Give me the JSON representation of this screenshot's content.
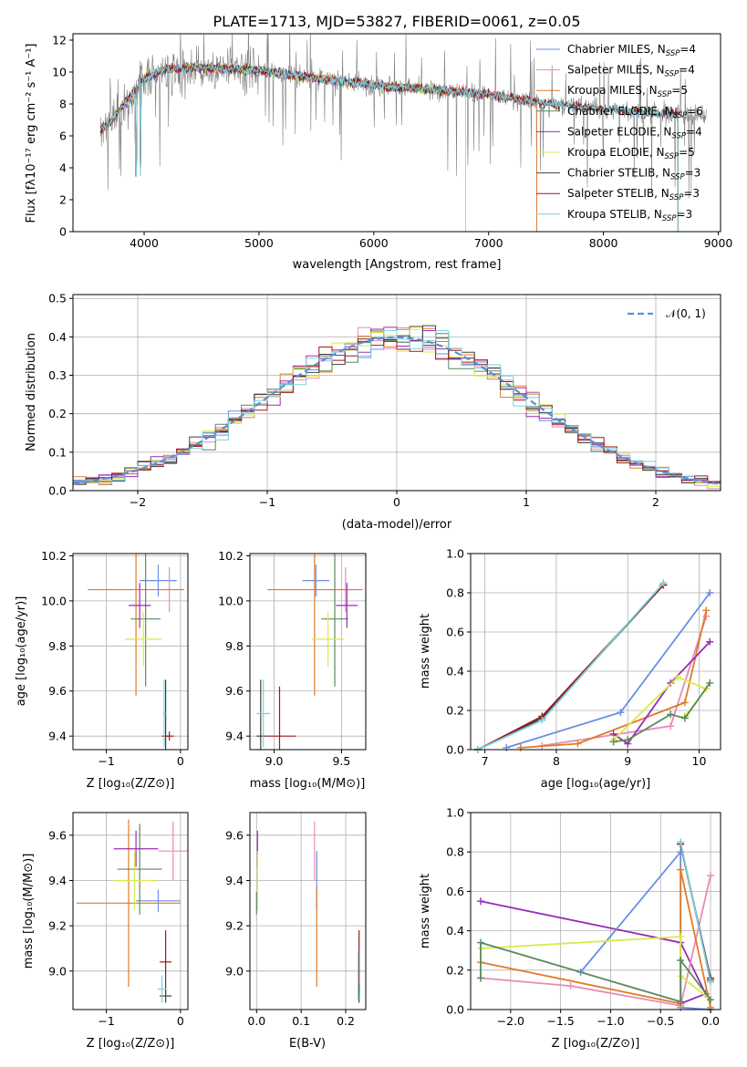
{
  "colors": {
    "chabrier_miles": "#6a8ee0",
    "salpeter_miles": "#e88bb6",
    "kroupa_miles": "#e07b28",
    "chabrier_elodie": "#5a8a5e",
    "salpeter_elodie": "#9b2ab8",
    "kroupa_elodie": "#d8ea48",
    "chabrier_stelib": "#404040",
    "salpeter_stelib": "#a01818",
    "kroupa_stelib": "#7ad0dc",
    "data": "#808080",
    "normal": "#5b8ed6"
  },
  "chart_data": [
    {
      "id": "spectrum",
      "type": "line",
      "title": "PLATE=1713, MJD=53827, FIBERID=0061, z=0.05",
      "xlabel": "wavelength [Angstrom, rest frame]",
      "ylabel": "Flux [fλ10⁻¹⁷ erg cm⁻² s⁻¹ A⁻¹]",
      "xlim": [
        3380,
        9020
      ],
      "ylim": [
        0,
        12.4
      ],
      "xticks": [
        4000,
        5000,
        6000,
        7000,
        8000,
        9000
      ],
      "yticks": [
        0,
        2,
        4,
        6,
        8,
        10,
        12
      ],
      "legend_position": "upper right",
      "continuum": {
        "x": [
          3620,
          3700,
          3800,
          3900,
          4000,
          4200,
          4500,
          5000,
          5500,
          6000,
          6500,
          7000,
          7500,
          8000,
          8500,
          8900
        ],
        "y": [
          6.4,
          6.8,
          7.8,
          8.6,
          9.6,
          10.2,
          10.3,
          10.1,
          9.6,
          9.2,
          8.9,
          8.6,
          8.0,
          7.7,
          7.4,
          7.3
        ]
      },
      "data_end": 8900,
      "series": [
        {
          "name": "Chabrier MILES, N_SSP=4",
          "label_main": "Chabrier MILES, N",
          "label_sub": "SSP",
          "label_tail": "=4",
          "color_key": "chabrier_miles",
          "end": 7420
        },
        {
          "name": "Salpeter MILES, N_SSP=4",
          "label_main": "Salpeter MILES, N",
          "label_sub": "SSP",
          "label_tail": "=4",
          "color_key": "salpeter_miles",
          "end": 7420
        },
        {
          "name": "Kroupa MILES, N_SSP=5",
          "label_main": "Kroupa MILES, N",
          "label_sub": "SSP",
          "label_tail": "=5",
          "color_key": "kroupa_miles",
          "end": 7420
        },
        {
          "name": "Chabrier ELODIE, N_SSP=6",
          "label_main": "Chabrier ELODIE, N",
          "label_sub": "SSP",
          "label_tail": "=6",
          "color_key": "chabrier_elodie",
          "end": 6800
        },
        {
          "name": "Salpeter ELODIE, N_SSP=4",
          "label_main": "Salpeter ELODIE, N",
          "label_sub": "SSP",
          "label_tail": "=4",
          "color_key": "salpeter_elodie",
          "end": 6800
        },
        {
          "name": "Kroupa ELODIE, N_SSP=5",
          "label_main": "Kroupa ELODIE, N",
          "label_sub": "SSP",
          "label_tail": "=5",
          "color_key": "kroupa_elodie",
          "end": 6800
        },
        {
          "name": "Chabrier STELIB, N_SSP=3",
          "label_main": "Chabrier STELIB, N",
          "label_sub": "SSP",
          "label_tail": "=3",
          "color_key": "chabrier_stelib",
          "end": 8650
        },
        {
          "name": "Salpeter STELIB, N_SSP=3",
          "label_main": "Salpeter STELIB, N",
          "label_sub": "SSP",
          "label_tail": "=3",
          "color_key": "salpeter_stelib",
          "end": 8650
        },
        {
          "name": "Kroupa STELIB, N_SSP=3",
          "label_main": "Kroupa STELIB, N",
          "label_sub": "SSP",
          "label_tail": "=3",
          "color_key": "kroupa_stelib",
          "end": 8650
        }
      ]
    },
    {
      "id": "residuals",
      "type": "histogram",
      "xlabel": "(data-model)/error",
      "ylabel": "Normed distribution",
      "xlim": [
        -2.5,
        2.5
      ],
      "ylim": [
        0,
        0.51
      ],
      "xticks": [
        -2,
        -1,
        0,
        1,
        2
      ],
      "yticks": [
        0.0,
        0.1,
        0.2,
        0.3,
        0.4,
        0.5
      ],
      "bin_width": 0.1,
      "reference": {
        "name": "N(0,1)",
        "label": "𝒩(0, 1)",
        "mean": 0,
        "sigma": 1,
        "style": "dashed",
        "color_key": "normal"
      },
      "legend_position": "upper right"
    },
    {
      "id": "z_vs_age",
      "type": "errorbar",
      "xlabel": "Z [log₁₀(Z/Z⊙)]",
      "ylabel": "age  [log₁₀(age/yr)]",
      "xlim": [
        -1.45,
        0.1
      ],
      "ylim": [
        9.34,
        10.21
      ],
      "xticks": [
        -1,
        0
      ],
      "yticks": [
        9.4,
        9.6,
        9.8,
        10.0,
        10.2
      ],
      "points": [
        {
          "color_key": "chabrier_miles",
          "x": -0.3,
          "xerr": 0.25,
          "y": 10.09,
          "yerr": 0.07
        },
        {
          "color_key": "salpeter_miles",
          "x": -0.15,
          "xerr": 0.15,
          "y": 10.05,
          "yerr": 0.1
        },
        {
          "color_key": "kroupa_miles",
          "x": -0.6,
          "xerr": 0.65,
          "y": 10.05,
          "yerr": 0.47
        },
        {
          "color_key": "chabrier_elodie",
          "x": -0.47,
          "xerr": 0.2,
          "y": 9.92,
          "yerr": 0.3
        },
        {
          "color_key": "salpeter_elodie",
          "x": -0.55,
          "xerr": 0.15,
          "y": 9.98,
          "yerr": 0.1
        },
        {
          "color_key": "kroupa_elodie",
          "x": -0.5,
          "xerr": 0.25,
          "y": 9.83,
          "yerr": 0.12
        },
        {
          "color_key": "chabrier_stelib",
          "x": -0.2,
          "xerr": 0.05,
          "y": 9.4,
          "yerr": 0.25
        },
        {
          "color_key": "salpeter_stelib",
          "x": -0.15,
          "xerr": 0.06,
          "y": 9.4,
          "yerr": 0.02
        },
        {
          "color_key": "kroupa_stelib",
          "x": -0.22,
          "xerr": 0.02,
          "y": 9.5,
          "yerr": 0.15
        }
      ]
    },
    {
      "id": "mass_vs_age",
      "type": "errorbar",
      "xlabel": "mass [log₁₀(M/M⊙)]",
      "ylabel": "",
      "xlim": [
        8.82,
        9.68
      ],
      "ylim": [
        9.34,
        10.21
      ],
      "xticks": [
        9.0,
        9.5
      ],
      "yticks": [
        9.4,
        9.6,
        9.8,
        10.0,
        10.2
      ],
      "points": [
        {
          "color_key": "chabrier_miles",
          "x": 9.31,
          "xerr": 0.1,
          "y": 10.09,
          "yerr": 0.07
        },
        {
          "color_key": "salpeter_miles",
          "x": 9.53,
          "xerr": 0.13,
          "y": 10.05,
          "yerr": 0.1
        },
        {
          "color_key": "kroupa_miles",
          "x": 9.3,
          "xerr": 0.35,
          "y": 10.05,
          "yerr": 0.47
        },
        {
          "color_key": "chabrier_elodie",
          "x": 9.45,
          "xerr": 0.1,
          "y": 9.92,
          "yerr": 0.3
        },
        {
          "color_key": "salpeter_elodie",
          "x": 9.54,
          "xerr": 0.08,
          "y": 9.98,
          "yerr": 0.1
        },
        {
          "color_key": "kroupa_elodie",
          "x": 9.4,
          "xerr": 0.12,
          "y": 9.83,
          "yerr": 0.12
        },
        {
          "color_key": "chabrier_stelib",
          "x": 8.9,
          "xerr": 0.03,
          "y": 9.4,
          "yerr": 0.25
        },
        {
          "color_key": "salpeter_stelib",
          "x": 9.04,
          "xerr": 0.12,
          "y": 9.4,
          "yerr": 0.22
        },
        {
          "color_key": "kroupa_stelib",
          "x": 8.92,
          "xerr": 0.05,
          "y": 9.5,
          "yerr": 0.15
        }
      ]
    },
    {
      "id": "age_vs_weight",
      "type": "line",
      "xlabel": "age  [log₁₀(age/yr)]",
      "ylabel": "mass weight",
      "xlim": [
        6.8,
        10.3
      ],
      "ylim": [
        0,
        1.0
      ],
      "xticks": [
        7,
        8,
        9,
        10
      ],
      "yticks": [
        0.0,
        0.2,
        0.4,
        0.6,
        0.8,
        1.0
      ],
      "series": [
        {
          "color_key": "chabrier_stelib",
          "x": [
            6.9,
            7.8,
            9.5
          ],
          "y": [
            0.0,
            0.16,
            0.84
          ]
        },
        {
          "color_key": "salpeter_stelib",
          "x": [
            6.9,
            7.8,
            9.5
          ],
          "y": [
            0.0,
            0.17,
            0.84
          ]
        },
        {
          "color_key": "kroupa_stelib",
          "x": [
            6.9,
            7.8,
            9.5
          ],
          "y": [
            0.0,
            0.15,
            0.85
          ]
        },
        {
          "color_key": "chabrier_miles",
          "x": [
            7.3,
            8.9,
            10.15
          ],
          "y": [
            0.01,
            0.19,
            0.8
          ]
        },
        {
          "color_key": "salpeter_miles",
          "x": [
            7.8,
            9.6,
            10.1
          ],
          "y": [
            0.02,
            0.12,
            0.68
          ]
        },
        {
          "color_key": "kroupa_miles",
          "x": [
            7.5,
            8.3,
            9.8,
            10.1
          ],
          "y": [
            0.01,
            0.03,
            0.24,
            0.71
          ]
        },
        {
          "color_key": "salpeter_elodie",
          "x": [
            8.8,
            9.0,
            9.6,
            10.15
          ],
          "y": [
            0.08,
            0.03,
            0.34,
            0.55
          ]
        },
        {
          "color_key": "kroupa_elodie",
          "x": [
            8.8,
            9.7,
            10.1,
            9.8
          ],
          "y": [
            0.05,
            0.37,
            0.31,
            0.17
          ]
        },
        {
          "color_key": "chabrier_elodie",
          "x": [
            8.8,
            9.0,
            9.6,
            9.8,
            10.15
          ],
          "y": [
            0.04,
            0.05,
            0.18,
            0.16,
            0.34
          ]
        }
      ]
    },
    {
      "id": "z_vs_mass",
      "type": "errorbar",
      "xlabel": "Z [log₁₀(Z/Z⊙)]",
      "ylabel": "mass [log₁₀(M/M⊙)]",
      "xlim": [
        -1.45,
        0.1
      ],
      "ylim": [
        8.83,
        9.7
      ],
      "xticks": [
        -1,
        0
      ],
      "yticks": [
        9.0,
        9.2,
        9.4,
        9.6
      ],
      "points": [
        {
          "color_key": "chabrier_miles",
          "x": -0.3,
          "xerr": 0.3,
          "y": 9.31,
          "yerr": 0.05
        },
        {
          "color_key": "salpeter_miles",
          "x": -0.1,
          "xerr": 0.2,
          "y": 9.53,
          "yerr": 0.13
        },
        {
          "color_key": "kroupa_miles",
          "x": -0.7,
          "xerr": 0.7,
          "y": 9.3,
          "yerr": 0.37
        },
        {
          "color_key": "chabrier_elodie",
          "x": -0.55,
          "xerr": 0.3,
          "y": 9.45,
          "yerr": 0.2
        },
        {
          "color_key": "salpeter_elodie",
          "x": -0.6,
          "xerr": 0.3,
          "y": 9.54,
          "yerr": 0.08
        },
        {
          "color_key": "kroupa_elodie",
          "x": -0.62,
          "xerr": 0.28,
          "y": 9.4,
          "yerr": 0.13
        },
        {
          "color_key": "chabrier_stelib",
          "x": -0.2,
          "xerr": 0.08,
          "y": 8.89,
          "yerr": 0.03
        },
        {
          "color_key": "salpeter_stelib",
          "x": -0.2,
          "xerr": 0.08,
          "y": 9.04,
          "yerr": 0.14
        },
        {
          "color_key": "kroupa_stelib",
          "x": -0.25,
          "xerr": 0.06,
          "y": 8.92,
          "yerr": 0.06
        }
      ]
    },
    {
      "id": "ebv_vs_mass",
      "type": "errorbar",
      "xlabel": "E(B-V)",
      "ylabel": "",
      "xlim": [
        -0.015,
        0.245
      ],
      "ylim": [
        8.83,
        9.7
      ],
      "xticks": [
        0.0,
        0.1,
        0.2
      ],
      "yticks": [
        9.0,
        9.2,
        9.4,
        9.6
      ],
      "points": [
        {
          "color_key": "salpeter_miles",
          "x": 0.13,
          "xerr": 0.0,
          "y": 9.53,
          "yerr": 0.13
        },
        {
          "color_key": "chabrier_miles",
          "x": 0.135,
          "xerr": 0.0,
          "y": 9.4,
          "yerr": 0.13
        },
        {
          "color_key": "kroupa_miles",
          "x": 0.135,
          "xerr": 0.0,
          "y": 9.15,
          "yerr": 0.22
        },
        {
          "color_key": "salpeter_elodie",
          "x": 0.002,
          "xerr": 0.0,
          "y": 9.54,
          "yerr": 0.08
        },
        {
          "color_key": "kroupa_elodie",
          "x": 0.002,
          "xerr": 0.0,
          "y": 9.4,
          "yerr": 0.13
        },
        {
          "color_key": "chabrier_elodie",
          "x": 0.0,
          "xerr": 0.0,
          "y": 9.3,
          "yerr": 0.05
        },
        {
          "color_key": "salpeter_stelib",
          "x": 0.23,
          "xerr": 0.0,
          "y": 9.04,
          "yerr": 0.14
        },
        {
          "color_key": "chabrier_stelib",
          "x": 0.23,
          "xerr": 0.0,
          "y": 8.9,
          "yerr": 0.04
        },
        {
          "color_key": "kroupa_stelib",
          "x": 0.228,
          "xerr": 0.0,
          "y": 8.98,
          "yerr": 0.11
        }
      ]
    },
    {
      "id": "z_vs_weight",
      "type": "line",
      "xlabel": "Z [log₁₀(Z/Z⊙)]",
      "ylabel": "mass weight",
      "xlim": [
        -2.4,
        0.1
      ],
      "ylim": [
        0,
        1.0
      ],
      "xticks": [
        -2.0,
        -1.5,
        -1.0,
        -0.5,
        0.0
      ],
      "yticks": [
        0.0,
        0.2,
        0.4,
        0.6,
        0.8,
        1.0
      ],
      "series": [
        {
          "color_key": "salpeter_elodie",
          "x": [
            -2.3,
            -0.3,
            -0.05,
            -0.3
          ],
          "y": [
            0.55,
            0.34,
            0.08,
            0.03
          ]
        },
        {
          "color_key": "chabrier_miles",
          "x": [
            -1.3,
            -0.3,
            -0.3,
            0.0
          ],
          "y": [
            0.19,
            0.8,
            0.01,
            0.0
          ]
        },
        {
          "color_key": "salpeter_miles",
          "x": [
            -2.3,
            -1.4,
            -0.3,
            0.0,
            -0.3
          ],
          "y": [
            0.16,
            0.12,
            0.02,
            0.68,
            0.02
          ]
        },
        {
          "color_key": "kroupa_miles",
          "x": [
            -2.3,
            -0.3,
            -0.3,
            0.0
          ],
          "y": [
            0.24,
            0.03,
            0.71,
            0.01
          ]
        },
        {
          "color_key": "kroupa_elodie",
          "x": [
            -2.3,
            -0.3,
            -0.3,
            0.0
          ],
          "y": [
            0.31,
            0.37,
            0.17,
            0.05
          ]
        },
        {
          "color_key": "chabrier_elodie",
          "x": [
            -2.3,
            -2.3,
            -0.3,
            -0.3,
            0.0
          ],
          "y": [
            0.16,
            0.34,
            0.04,
            0.25,
            0.05
          ]
        },
        {
          "color_key": "chabrier_stelib",
          "x": [
            -0.3,
            0.0
          ],
          "y": [
            0.84,
            0.16
          ]
        },
        {
          "color_key": "salpeter_stelib",
          "x": [
            -0.3,
            0.0
          ],
          "y": [
            0.84,
            0.15
          ]
        },
        {
          "color_key": "kroupa_stelib",
          "x": [
            -0.3,
            0.0
          ],
          "y": [
            0.85,
            0.14
          ]
        }
      ]
    }
  ]
}
